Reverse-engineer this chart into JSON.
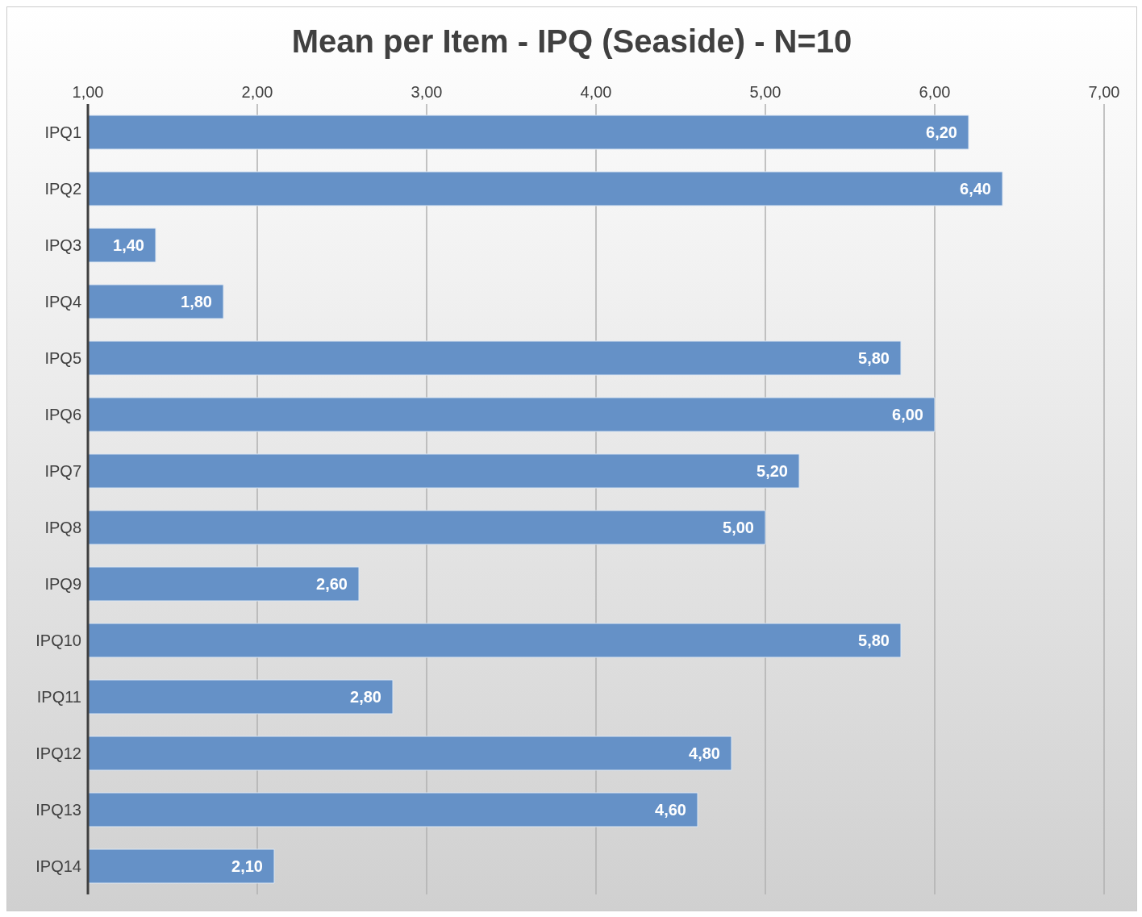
{
  "chart_data": {
    "type": "bar",
    "orientation": "horizontal",
    "title": "Mean per Item - IPQ (Seaside) - N=10",
    "categories": [
      "IPQ1",
      "IPQ2",
      "IPQ3",
      "IPQ4",
      "IPQ5",
      "IPQ6",
      "IPQ7",
      "IPQ8",
      "IPQ9",
      "IPQ10",
      "IPQ11",
      "IPQ12",
      "IPQ13",
      "IPQ14"
    ],
    "values": [
      6.2,
      6.4,
      1.4,
      1.8,
      5.8,
      6.0,
      5.2,
      5.0,
      2.6,
      5.8,
      2.8,
      4.8,
      4.6,
      2.1
    ],
    "value_labels": [
      "6,20",
      "6,40",
      "1,40",
      "1,80",
      "5,80",
      "6,00",
      "5,20",
      "5,00",
      "2,60",
      "5,80",
      "2,80",
      "4,80",
      "4,60",
      "2,10"
    ],
    "color": "#6591c7",
    "xlim": [
      1,
      7
    ],
    "xticks": [
      {
        "value": 1,
        "label": "1,00"
      },
      {
        "value": 2,
        "label": "2,00"
      },
      {
        "value": 3,
        "label": "3,00"
      },
      {
        "value": 4,
        "label": "4,00"
      },
      {
        "value": 5,
        "label": "5,00"
      },
      {
        "value": 6,
        "label": "6,00"
      },
      {
        "value": 7,
        "label": "7,00"
      }
    ],
    "grid": "x"
  }
}
